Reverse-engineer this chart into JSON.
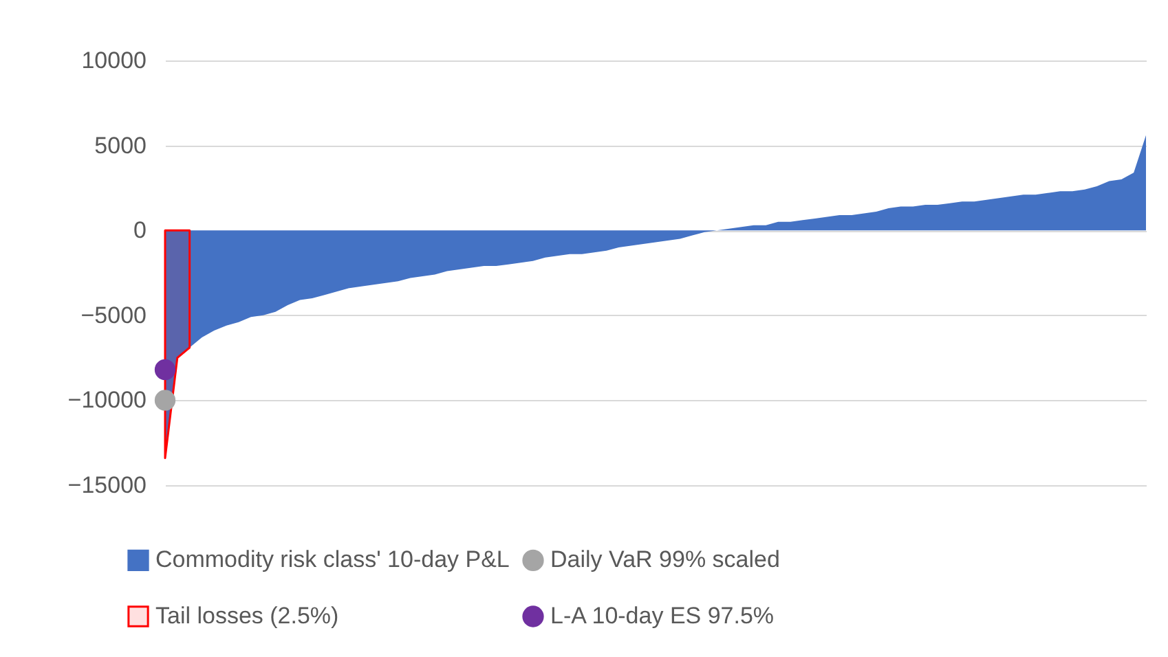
{
  "chart_data": {
    "type": "area",
    "categories": [
      null,
      null,
      null,
      null,
      null,
      null,
      null,
      null,
      null,
      null,
      null,
      null,
      null,
      null,
      null,
      null,
      null,
      null,
      null,
      null,
      null,
      null,
      null,
      null,
      null,
      null,
      null,
      null,
      null,
      null,
      null,
      null,
      null,
      null,
      null,
      null,
      null,
      null,
      null,
      null,
      null,
      null,
      null,
      null,
      null,
      null,
      null,
      null,
      null,
      null,
      null,
      null,
      null,
      null,
      null,
      null,
      null,
      null,
      null,
      null,
      null,
      null,
      null,
      null,
      null,
      null,
      null,
      null,
      null,
      null,
      null,
      null,
      null,
      null,
      null,
      null,
      null,
      null,
      null,
      null,
      null
    ],
    "series": [
      {
        "name": "Commodity risk class' 10-day P&L",
        "color": "#4472c4",
        "values": [
          -13400,
          -7500,
          -6900,
          -6300,
          -5900,
          -5600,
          -5400,
          -5100,
          -5000,
          -4800,
          -4400,
          -4100,
          -4000,
          -3800,
          -3600,
          -3400,
          -3300,
          -3200,
          -3100,
          -3000,
          -2800,
          -2700,
          -2600,
          -2400,
          -2300,
          -2200,
          -2100,
          -2100,
          -2000,
          -1900,
          -1800,
          -1600,
          -1500,
          -1400,
          -1400,
          -1300,
          -1200,
          -1000,
          -900,
          -800,
          -700,
          -600,
          -500,
          -300,
          -100,
          0,
          100,
          200,
          300,
          300,
          500,
          500,
          600,
          700,
          800,
          900,
          900,
          1000,
          1100,
          1300,
          1400,
          1400,
          1500,
          1500,
          1600,
          1700,
          1700,
          1800,
          1900,
          2000,
          2100,
          2100,
          2200,
          2300,
          2300,
          2400,
          2600,
          2900,
          3000,
          3400,
          5600
        ]
      },
      {
        "name": "Tail losses (2.5%)",
        "color": "#ff0000",
        "values": [
          -13400,
          -7500,
          -6900,
          null,
          null,
          null,
          null,
          null,
          null,
          null,
          null,
          null,
          null,
          null,
          null,
          null,
          null,
          null,
          null,
          null,
          null,
          null,
          null,
          null,
          null,
          null,
          null,
          null,
          null,
          null,
          null,
          null,
          null,
          null,
          null,
          null,
          null,
          null,
          null,
          null,
          null,
          null,
          null,
          null,
          null,
          null,
          null,
          null,
          null,
          null,
          null,
          null,
          null,
          null,
          null,
          null,
          null,
          null,
          null,
          null,
          null,
          null,
          null,
          null,
          null,
          null,
          null,
          null,
          null,
          null,
          null,
          null,
          null,
          null,
          null,
          null,
          null,
          null,
          null,
          null,
          null
        ]
      },
      {
        "name": "Daily VaR 99% scaled",
        "type": "scatter",
        "color": "#a5a5a5",
        "values": [
          -10000,
          null,
          null,
          null,
          null,
          null,
          null,
          null,
          null,
          null,
          null,
          null,
          null,
          null,
          null,
          null,
          null,
          null,
          null,
          null,
          null,
          null,
          null,
          null,
          null,
          null,
          null,
          null,
          null,
          null,
          null,
          null,
          null,
          null,
          null,
          null,
          null,
          null,
          null,
          null,
          null,
          null,
          null,
          null,
          null,
          null,
          null,
          null,
          null,
          null,
          null,
          null,
          null,
          null,
          null,
          null,
          null,
          null,
          null,
          null,
          null,
          null,
          null,
          null,
          null,
          null,
          null,
          null,
          null,
          null,
          null,
          null,
          null,
          null,
          null,
          null,
          null,
          null,
          null,
          null,
          null
        ]
      },
      {
        "name": "L-A 10-day ES 97.5%",
        "type": "scatter",
        "color": "#7030a0",
        "values": [
          -8200,
          null,
          null,
          null,
          null,
          null,
          null,
          null,
          null,
          null,
          null,
          null,
          null,
          null,
          null,
          null,
          null,
          null,
          null,
          null,
          null,
          null,
          null,
          null,
          null,
          null,
          null,
          null,
          null,
          null,
          null,
          null,
          null,
          null,
          null,
          null,
          null,
          null,
          null,
          null,
          null,
          null,
          null,
          null,
          null,
          null,
          null,
          null,
          null,
          null,
          null,
          null,
          null,
          null,
          null,
          null,
          null,
          null,
          null,
          null,
          null,
          null,
          null,
          null,
          null,
          null,
          null,
          null,
          null,
          null,
          null,
          null,
          null,
          null,
          null,
          null,
          null,
          null,
          null,
          null,
          null
        ]
      }
    ],
    "ylim": [
      -15000,
      10000
    ],
    "yticks": [
      -15000,
      -10000,
      -5000,
      0,
      5000,
      10000
    ],
    "grid": "y",
    "legend": "bottom",
    "tick_labels": "y"
  }
}
